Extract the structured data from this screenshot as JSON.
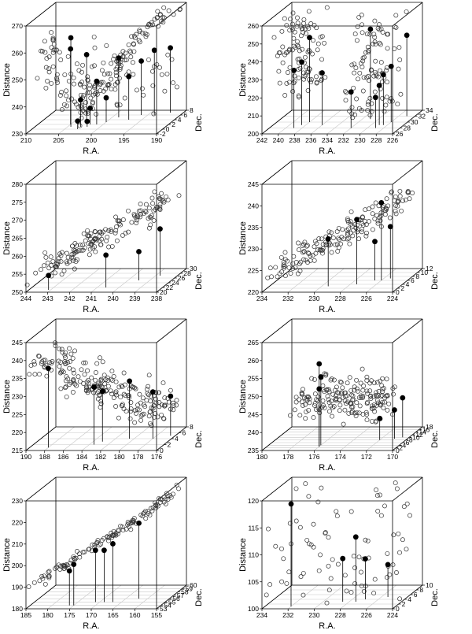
{
  "figure": {
    "description_of_panels": "Eight 3D scatter panels of Distance vs R.A. vs Dec."
  },
  "chart_data": [
    {
      "type": "scatter",
      "panel": 1,
      "xlabel": "R.A.",
      "ylabel": "Dec.",
      "zlabel": "Distance",
      "xlim": [
        210,
        190
      ],
      "ylim": [
        -2,
        8
      ],
      "zlim": [
        230,
        270
      ],
      "x_ticks": [
        "210",
        "205",
        "200",
        "195",
        "190"
      ],
      "y_ticks": [
        "-2",
        "0",
        "2",
        "4",
        "6",
        "8"
      ],
      "z_ticks": [
        "230",
        "240",
        "250",
        "260",
        "270"
      ],
      "seed": 11,
      "n_open": 210,
      "cluster_shape": "v",
      "highlighted": [
        {
          "x": 204.5,
          "y": 1,
          "z": 263
        },
        {
          "x": 205,
          "y": 2,
          "z": 258
        },
        {
          "x": 203,
          "y": 3,
          "z": 255
        },
        {
          "x": 199,
          "y": 5,
          "z": 252
        },
        {
          "x": 196,
          "y": 6,
          "z": 250
        },
        {
          "x": 194,
          "y": 6,
          "z": 254
        },
        {
          "x": 192,
          "y": 7,
          "z": 254
        },
        {
          "x": 201,
          "y": 2,
          "z": 246
        },
        {
          "x": 197,
          "y": 4,
          "z": 246
        },
        {
          "x": 203,
          "y": 1,
          "z": 240
        },
        {
          "x": 202,
          "y": 2,
          "z": 236
        },
        {
          "x": 203,
          "y": 0,
          "z": 233
        },
        {
          "x": 202,
          "y": 1,
          "z": 232
        },
        {
          "x": 200,
          "y": 3,
          "z": 239
        }
      ]
    },
    {
      "type": "scatter",
      "panel": 2,
      "xlabel": "R.A.",
      "ylabel": "Dec.",
      "zlabel": "Distance",
      "xlim": [
        242,
        226
      ],
      "ylim": [
        26,
        34
      ],
      "zlim": [
        200,
        260
      ],
      "x_ticks": [
        "242",
        "240",
        "238",
        "236",
        "234",
        "232",
        "230",
        "228",
        "226"
      ],
      "y_ticks": [
        "26",
        "28",
        "30",
        "32",
        "34"
      ],
      "z_ticks": [
        "200",
        "210",
        "220",
        "230",
        "240",
        "250",
        "260"
      ],
      "seed": 22,
      "n_open": 200,
      "cluster_shape": "two-columns",
      "highlighted": [
        {
          "x": 239,
          "y": 28,
          "z": 232
        },
        {
          "x": 238.5,
          "y": 29,
          "z": 235
        },
        {
          "x": 238,
          "y": 30,
          "z": 247
        },
        {
          "x": 236,
          "y": 29,
          "z": 229
        },
        {
          "x": 232,
          "y": 28,
          "z": 220
        },
        {
          "x": 231,
          "y": 31,
          "z": 250
        },
        {
          "x": 229,
          "y": 28,
          "z": 217
        },
        {
          "x": 229,
          "y": 29,
          "z": 222
        },
        {
          "x": 228,
          "y": 30,
          "z": 231
        },
        {
          "x": 227,
          "y": 32,
          "z": 245
        },
        {
          "x": 228.5,
          "y": 29,
          "z": 228
        }
      ]
    },
    {
      "type": "scatter",
      "panel": 3,
      "xlabel": "R.A.",
      "ylabel": "Dec.",
      "zlabel": "Distance",
      "xlim": [
        244,
        238
      ],
      "ylim": [
        20,
        30
      ],
      "zlim": [
        250,
        280
      ],
      "x_ticks": [
        "244",
        "243",
        "242",
        "241",
        "240",
        "239",
        "238"
      ],
      "y_ticks": [
        "20",
        "22",
        "24",
        "26",
        "28",
        "30"
      ],
      "z_ticks": [
        "250",
        "255",
        "260",
        "265",
        "270",
        "275",
        "280"
      ],
      "seed": 33,
      "n_open": 160,
      "cluster_shape": "rising",
      "highlighted": [
        {
          "x": 243.1,
          "y": 21,
          "z": 254
        },
        {
          "x": 240.6,
          "y": 22,
          "z": 259
        },
        {
          "x": 239.5,
          "y": 25,
          "z": 258
        },
        {
          "x": 238.8,
          "y": 27,
          "z": 263
        }
      ]
    },
    {
      "type": "scatter",
      "panel": 4,
      "xlabel": "R.A.",
      "ylabel": "Dec.",
      "zlabel": "Distance",
      "xlim": [
        234,
        224
      ],
      "ylim": [
        0,
        12
      ],
      "zlim": [
        220,
        245
      ],
      "x_ticks": [
        "234",
        "232",
        "230",
        "228",
        "226",
        "224"
      ],
      "y_ticks": [
        "0",
        "2",
        "4",
        "6",
        "8",
        "10",
        "12"
      ],
      "z_ticks": [
        "220",
        "225",
        "230",
        "235",
        "240",
        "245"
      ],
      "seed": 44,
      "n_open": 170,
      "cluster_shape": "rising",
      "highlighted": [
        {
          "x": 229.5,
          "y": 3,
          "z": 231
        },
        {
          "x": 227.5,
          "y": 4,
          "z": 235
        },
        {
          "x": 226.5,
          "y": 6,
          "z": 229
        },
        {
          "x": 226,
          "y": 6,
          "z": 238
        },
        {
          "x": 225.5,
          "y": 7,
          "z": 232
        }
      ]
    },
    {
      "type": "scatter",
      "panel": 5,
      "xlabel": "R.A.",
      "ylabel": "Dec.",
      "zlabel": "Distance",
      "xlim": [
        190,
        176
      ],
      "ylim": [
        0,
        8
      ],
      "zlim": [
        215,
        245
      ],
      "x_ticks": [
        "190",
        "188",
        "186",
        "184",
        "182",
        "180",
        "178",
        "176"
      ],
      "y_ticks": [
        "0",
        "2",
        "4",
        "6",
        "8"
      ],
      "z_ticks": [
        "215",
        "220",
        "225",
        "230",
        "235",
        "240",
        "245"
      ],
      "seed": 55,
      "n_open": 220,
      "cluster_shape": "falling",
      "highlighted": [
        {
          "x": 188,
          "y": 1,
          "z": 237
        },
        {
          "x": 183.5,
          "y": 2,
          "z": 231
        },
        {
          "x": 183,
          "y": 3,
          "z": 229
        },
        {
          "x": 180.5,
          "y": 4,
          "z": 231
        },
        {
          "x": 178,
          "y": 4,
          "z": 228
        },
        {
          "x": 176.5,
          "y": 5,
          "z": 226
        }
      ]
    },
    {
      "type": "scatter",
      "panel": 6,
      "xlabel": "R.A.",
      "ylabel": "Dec.",
      "zlabel": "Distance",
      "xlim": [
        180,
        170
      ],
      "ylim": [
        0,
        18
      ],
      "zlim": [
        235,
        265
      ],
      "x_ticks": [
        "180",
        "178",
        "176",
        "174",
        "172",
        "170"
      ],
      "y_ticks": [
        "0",
        "2",
        "4",
        "6",
        "8",
        "10",
        "12",
        "14",
        "16",
        "18"
      ],
      "z_ticks": [
        "235",
        "240",
        "245",
        "250",
        "255",
        "260",
        "265"
      ],
      "seed": 66,
      "n_open": 190,
      "cluster_shape": "blob",
      "highlighted": [
        {
          "x": 176,
          "y": 3,
          "z": 258
        },
        {
          "x": 176,
          "y": 4,
          "z": 254
        },
        {
          "x": 176,
          "y": 3,
          "z": 251
        },
        {
          "x": 172,
          "y": 8,
          "z": 241
        },
        {
          "x": 171,
          "y": 9,
          "z": 243
        },
        {
          "x": 170.5,
          "y": 10,
          "z": 246
        }
      ]
    },
    {
      "type": "scatter",
      "panel": 7,
      "xlabel": "R.A.",
      "ylabel": "Dec.",
      "zlabel": "Distance",
      "xlim": [
        185,
        155
      ],
      "ylim": [
        53,
        60
      ],
      "zlim": [
        180,
        230
      ],
      "x_ticks": [
        "185",
        "180",
        "175",
        "170",
        "165",
        "160",
        "155"
      ],
      "y_ticks": [
        "53",
        "54",
        "55",
        "56",
        "57",
        "58",
        "59",
        "60"
      ],
      "z_ticks": [
        "180",
        "190",
        "200",
        "210",
        "220",
        "230"
      ],
      "seed": 77,
      "n_open": 120,
      "cluster_shape": "rising-thin",
      "highlighted": [
        {
          "x": 176,
          "y": 54,
          "z": 196
        },
        {
          "x": 175,
          "y": 54,
          "z": 199
        },
        {
          "x": 171,
          "y": 55,
          "z": 204
        },
        {
          "x": 169,
          "y": 55,
          "z": 204
        },
        {
          "x": 167,
          "y": 55,
          "z": 207
        },
        {
          "x": 162,
          "y": 56,
          "z": 215
        }
      ]
    },
    {
      "type": "scatter",
      "panel": 8,
      "xlabel": "R.A.",
      "ylabel": "Dec.",
      "zlabel": "Distance",
      "xlim": [
        234,
        224
      ],
      "ylim": [
        0,
        10
      ],
      "zlim": [
        100,
        120
      ],
      "x_ticks": [
        "234",
        "232",
        "230",
        "228",
        "226",
        "224"
      ],
      "y_ticks": [
        "0",
        "2",
        "4",
        "6",
        "8",
        "10"
      ],
      "z_ticks": [
        "100",
        "105",
        "110",
        "115",
        "120"
      ],
      "seed": 88,
      "n_open": 80,
      "cluster_shape": "sparse",
      "highlighted": [
        {
          "x": 232,
          "y": 1,
          "z": 119
        },
        {
          "x": 228.5,
          "y": 3,
          "z": 108
        },
        {
          "x": 227.5,
          "y": 3,
          "z": 112
        },
        {
          "x": 227,
          "y": 4,
          "z": 107.5
        },
        {
          "x": 225.5,
          "y": 5,
          "z": 106
        }
      ]
    }
  ]
}
